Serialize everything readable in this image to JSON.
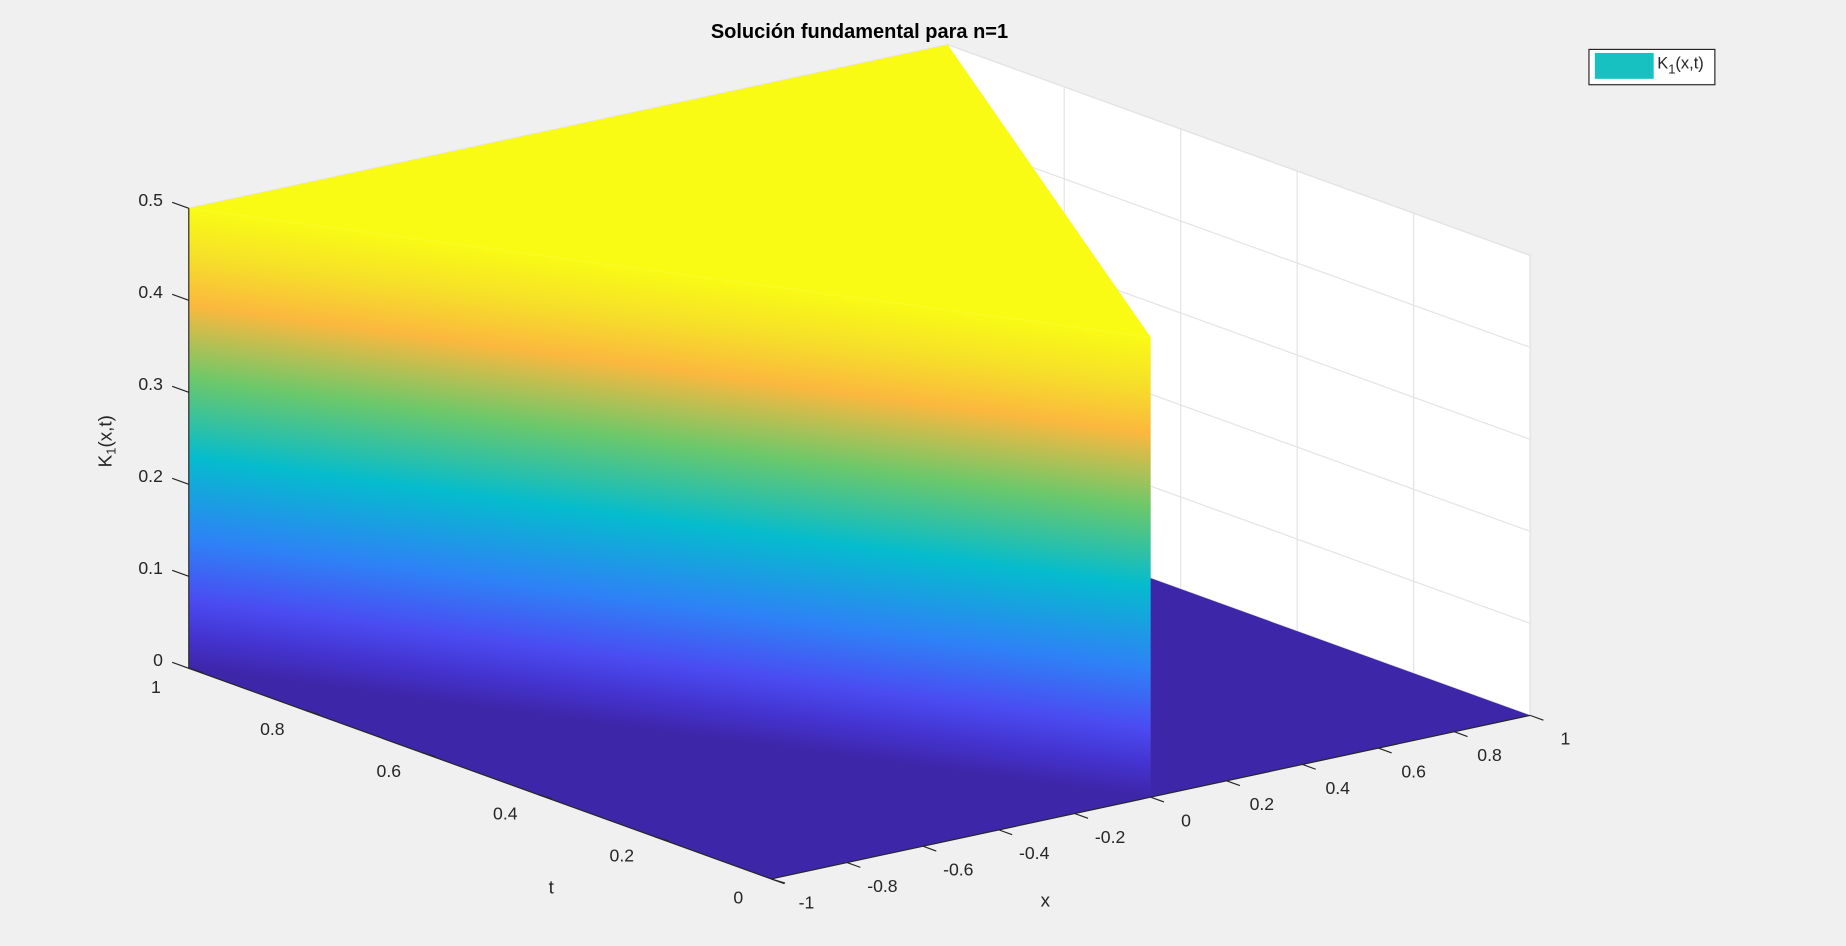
{
  "chart_data": {
    "type": "surface3d",
    "title": "Solución fundamental para n=1",
    "xlabel": "x",
    "ylabel": "t",
    "zlabel": {
      "base": "K",
      "sub": "1",
      "tail": "(x,t)"
    },
    "xlim": [
      -1,
      1
    ],
    "xticks": [
      -1,
      -0.8,
      -0.6,
      -0.4,
      -0.2,
      0,
      0.2,
      0.4,
      0.6,
      0.8,
      1
    ],
    "ylim": [
      0,
      1
    ],
    "yticks": [
      0,
      0.2,
      0.4,
      0.6,
      0.8,
      1
    ],
    "zlim": [
      0,
      0.5
    ],
    "zticks": [
      0,
      0.1,
      0.2,
      0.3,
      0.4,
      0.5
    ],
    "grid": true,
    "series": [
      {
        "name": {
          "base": "K",
          "sub": "1",
          "tail": "(x,t)"
        },
        "color": "#17c1c1"
      }
    ]
  }
}
